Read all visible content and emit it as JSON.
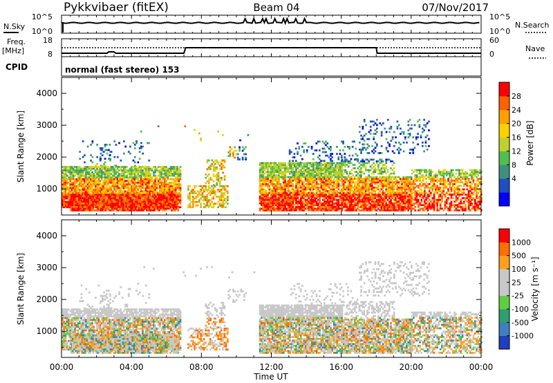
{
  "header": {
    "station": "Pykkvibaer (fitEX)",
    "beam": "Beam 04",
    "date": "07/Nov/2017"
  },
  "top_panel": {
    "left_label": "N.Sky",
    "left_ticks": [
      "10^5",
      "10^0"
    ],
    "right_label": "N.Search",
    "right_ticks": [
      "10^5",
      "10^0"
    ]
  },
  "freq_panel": {
    "left_label_1": "Freq.",
    "left_label_2": "[MHz]",
    "left_ticks": [
      "18",
      "8"
    ],
    "right_label": "Nave",
    "right_ticks": [
      "60",
      "0"
    ]
  },
  "cpid_panel": {
    "label": "CPID",
    "text": "normal (fast stereo) 153"
  },
  "chart_data": [
    {
      "type": "heatmap",
      "name": "power",
      "ylabel": "Slant Range [km]",
      "yticks": [
        "4000",
        "3000",
        "2000",
        "1000"
      ],
      "ylim": [
        180,
        4500
      ],
      "xlabel": "Time UT",
      "xticks": [
        "00:00",
        "04:00",
        "08:00",
        "12:00",
        "16:00",
        "20:00",
        "00:00"
      ],
      "colorbar_label": "Power [dB]",
      "colorbar_ticks": [
        "28",
        "24",
        "20",
        "16",
        "12",
        "8",
        "4"
      ],
      "colors": [
        "#0000ff",
        "#1f4fbf",
        "#3f8f7f",
        "#4fbf4f",
        "#bfd02f",
        "#ffd000",
        "#ff9f00",
        "#ff6000",
        "#ff0000"
      ]
    },
    {
      "type": "heatmap",
      "name": "velocity",
      "ylabel": "Slant Range [km]",
      "yticks": [
        "4000",
        "3000",
        "2000",
        "1000"
      ],
      "ylim": [
        180,
        4500
      ],
      "xlabel": "Time UT",
      "xticks": [
        "00:00",
        "04:00",
        "08:00",
        "12:00",
        "16:00",
        "20:00",
        "00:00"
      ],
      "colorbar_label": "Velocity  [m s⁻¹]",
      "colorbar_ticks": [
        "1000",
        "500",
        "100",
        "25",
        "-25",
        "-100",
        "-500",
        "-1000"
      ],
      "colors": [
        "#1f3fbf",
        "#3f7fbf",
        "#2f9f6f",
        "#5fcf3f",
        "#c8c8c8",
        "#c8c8c8",
        "#ff9f1f",
        "#ff6f00",
        "#ff0000"
      ]
    }
  ]
}
